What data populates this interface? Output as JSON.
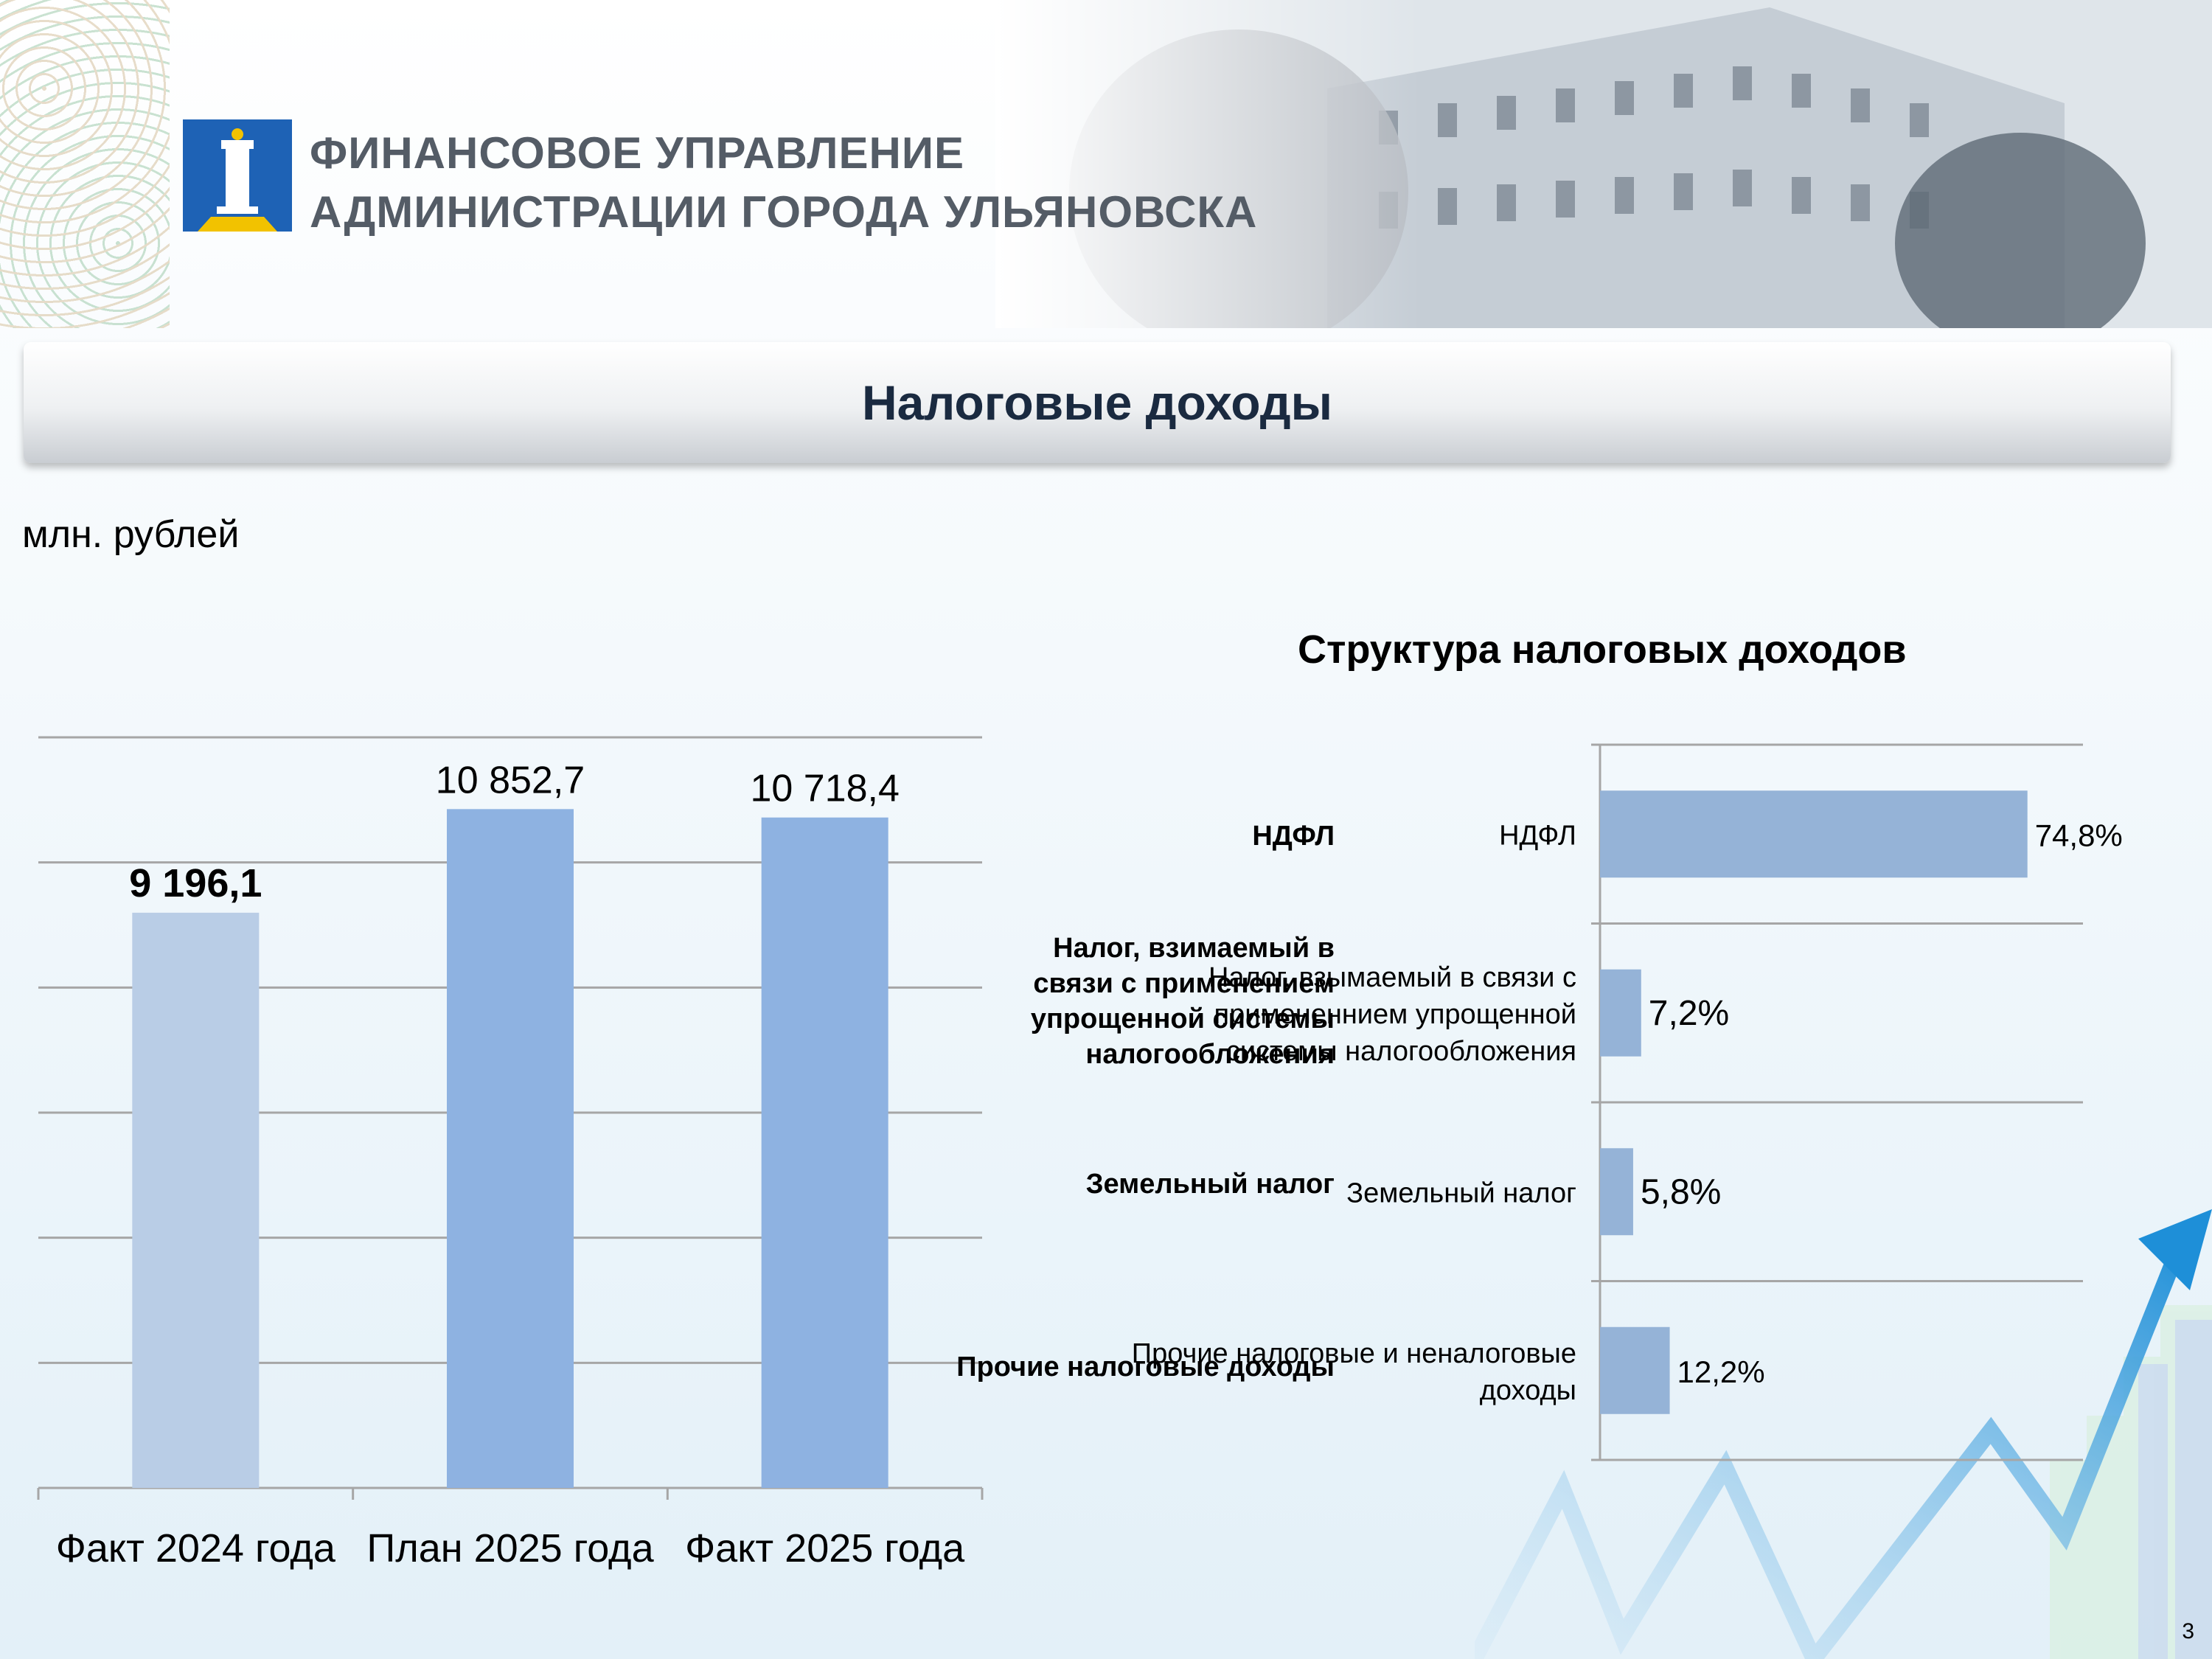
{
  "header": {
    "org_line1": "ФИНАНСОВОЕ УПРАВЛЕНИЕ",
    "org_line2": "АДМИНИСТРАЦИИ ГОРОДА УЛЬЯНОВСКА"
  },
  "title": "Налоговые доходы",
  "units": "млн. рублей",
  "right_title": "Структура налоговых доходов",
  "page_number": "3",
  "colors": {
    "bar_2024": "#b9cde6",
    "bar_2025": "#8eb2e1",
    "hbar": "#95b3d7",
    "grid": "#a6a6a6"
  },
  "overlay_labels": [
    "НДФЛ",
    "Налог, взимаемый в связи с применением упрощенной системы налогообложения",
    "Земельный налог",
    "Прочие налоговые доходы"
  ],
  "chart_data": [
    {
      "type": "bar",
      "categories": [
        "Факт 2024 года",
        "План 2025 года",
        "Факт 2025 года"
      ],
      "values": [
        9196.1,
        10852.7,
        10718.4
      ],
      "value_labels": [
        "9 196,1",
        "10 852,7",
        "10 718,4"
      ],
      "ylim": [
        0,
        12000
      ],
      "grid": true
    },
    {
      "type": "bar",
      "orientation": "horizontal",
      "title": "Структура налоговых доходов",
      "categories": [
        "НДФЛ",
        "Налог, взымаемый в связи с примененнием упрощенной системы налогообложения",
        "Земельный налог",
        "Прочие налоговые и неналоговые доходы"
      ],
      "category_label_lines": [
        [
          "НДФЛ"
        ],
        [
          "Налог, взымаемый в связи с",
          "примененнием упрощенной",
          "системы налогообложения"
        ],
        [
          "Земельный налог"
        ],
        [
          "Прочие налоговые и неналоговые",
          "доходы"
        ]
      ],
      "values": [
        74.8,
        7.2,
        5.8,
        12.2
      ],
      "value_labels": [
        "74,8%",
        "7,2%",
        "5,8%",
        "12,2%"
      ],
      "xlim": [
        0,
        80
      ],
      "grid": true
    }
  ]
}
